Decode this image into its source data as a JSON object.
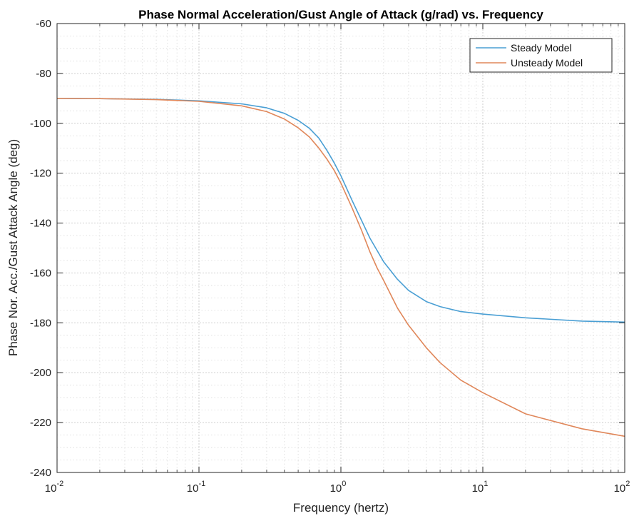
{
  "chart_data": {
    "type": "line",
    "title": "Phase Normal Acceleration/Gust Angle of Attack (g/rad) vs. Frequency",
    "xlabel": "Frequency (hertz)",
    "ylabel": "Phase Nor. Acc./Gust Attack Angle (deg)",
    "xscale": "log",
    "xlim": [
      0.01,
      100
    ],
    "ylim": [
      -240,
      -60
    ],
    "grid": true,
    "minor_grid": true,
    "legend_position": "top-right",
    "x_ticks": [
      {
        "base": "10",
        "exp": "-2",
        "value": 0.01
      },
      {
        "base": "10",
        "exp": "-1",
        "value": 0.1
      },
      {
        "base": "10",
        "exp": "0",
        "value": 1
      },
      {
        "base": "10",
        "exp": "1",
        "value": 10
      },
      {
        "base": "10",
        "exp": "2",
        "value": 100
      }
    ],
    "y_ticks": [
      -60,
      -80,
      -100,
      -120,
      -140,
      -160,
      -180,
      -200,
      -220,
      -240
    ],
    "series": [
      {
        "name": "Steady Model",
        "color": "#4a9fd4",
        "x": [
          0.01,
          0.02,
          0.05,
          0.1,
          0.2,
          0.3,
          0.4,
          0.5,
          0.6,
          0.7,
          0.8,
          0.9,
          1.0,
          1.2,
          1.4,
          1.6,
          1.8,
          2.0,
          2.5,
          3.0,
          4.0,
          5.0,
          7.0,
          10,
          20,
          50,
          100
        ],
        "y": [
          -90,
          -90.1,
          -90.4,
          -91,
          -92.2,
          -93.8,
          -96,
          -98.8,
          -102,
          -106,
          -111,
          -116,
          -121,
          -131,
          -139,
          -146,
          -151,
          -155.5,
          -162.5,
          -167,
          -171.5,
          -173.5,
          -175.5,
          -176.5,
          -178,
          -179.3,
          -179.7
        ]
      },
      {
        "name": "Unsteady Model",
        "color": "#e0875a",
        "x": [
          0.01,
          0.02,
          0.05,
          0.1,
          0.2,
          0.3,
          0.4,
          0.5,
          0.6,
          0.7,
          0.8,
          0.9,
          1.0,
          1.2,
          1.4,
          1.6,
          1.8,
          2.0,
          2.5,
          3.0,
          4.0,
          5.0,
          7.0,
          10,
          20,
          50,
          100
        ],
        "y": [
          -90,
          -90.1,
          -90.5,
          -91.2,
          -93,
          -95.3,
          -98.3,
          -101.8,
          -105.5,
          -110,
          -114.5,
          -119,
          -124,
          -134,
          -143,
          -151.5,
          -158,
          -163,
          -174,
          -181,
          -190,
          -196,
          -203,
          -208,
          -216.5,
          -222.5,
          -225.5
        ]
      }
    ]
  }
}
